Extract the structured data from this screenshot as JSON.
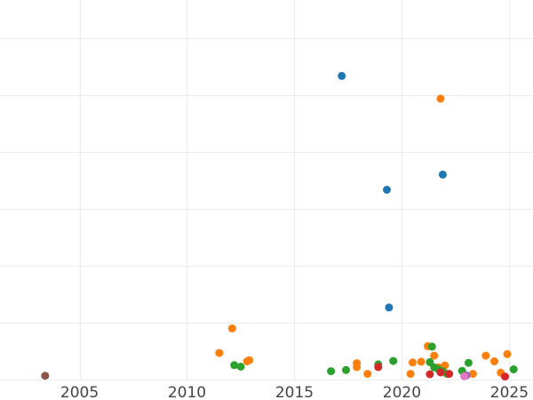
{
  "chart_data": {
    "type": "scatter",
    "title": "",
    "xlabel": "",
    "ylabel": "",
    "xlim": [
      2001.3,
      2026.1
    ],
    "ylim": [
      0,
      100
    ],
    "x_ticks": [
      2005,
      2010,
      2015,
      2020,
      2025
    ],
    "x_tick_labels": [
      "2005",
      "2010",
      "2015",
      "2020",
      "2025"
    ],
    "y_gridlines": [
      0,
      15,
      30,
      45,
      60,
      75,
      90
    ],
    "grid": true,
    "legend": "none",
    "series": [
      {
        "color": "#1f77b4",
        "points": [
          [
            2017.2,
            80
          ],
          [
            2019.3,
            50
          ],
          [
            2021.9,
            54
          ],
          [
            2019.4,
            19
          ]
        ]
      },
      {
        "color": "#ff7f0e",
        "points": [
          [
            2021.8,
            74
          ],
          [
            2012.1,
            13.5
          ],
          [
            2011.5,
            7
          ],
          [
            2012.8,
            4.8
          ],
          [
            2012.9,
            5.1
          ],
          [
            2017.9,
            3.3
          ],
          [
            2017.9,
            4.3
          ],
          [
            2018.4,
            1.5
          ],
          [
            2020.4,
            1.5
          ],
          [
            2020.5,
            4.5
          ],
          [
            2020.9,
            4.7
          ],
          [
            2021.2,
            8.8
          ],
          [
            2021.5,
            6.3
          ],
          [
            2021.7,
            3.2
          ],
          [
            2022.0,
            3.7
          ],
          [
            2023.3,
            1.5
          ],
          [
            2023.9,
            6.3
          ],
          [
            2024.3,
            4.8
          ],
          [
            2024.6,
            1.8
          ],
          [
            2024.9,
            6.7
          ]
        ]
      },
      {
        "color": "#2ca02c",
        "points": [
          [
            2012.2,
            3.8
          ],
          [
            2012.5,
            3.4
          ],
          [
            2016.7,
            2.2
          ],
          [
            2017.4,
            2.5
          ],
          [
            2018.9,
            4
          ],
          [
            2019.6,
            4.9
          ],
          [
            2021.3,
            4.6
          ],
          [
            2021.4,
            8.7
          ],
          [
            2021.5,
            3.2
          ],
          [
            2021.7,
            2.7
          ],
          [
            2021.9,
            2.2
          ],
          [
            2022.1,
            1.5
          ],
          [
            2022.8,
            2.3
          ],
          [
            2023.1,
            4.4
          ],
          [
            2025.2,
            2.7
          ]
        ]
      },
      {
        "color": "#d62728",
        "points": [
          [
            2018.9,
            3.3
          ],
          [
            2021.3,
            1.4
          ],
          [
            2021.8,
            1.9
          ],
          [
            2022.2,
            1.5
          ],
          [
            2024.8,
            0.8
          ]
        ]
      },
      {
        "color": "#9467bd",
        "points": [
          [
            2023.0,
            1.1
          ]
        ]
      },
      {
        "color": "#8c564b",
        "points": [
          [
            2003.4,
            1
          ]
        ]
      },
      {
        "color": "#e377c2",
        "points": [
          [
            2022.9,
            0.9
          ]
        ]
      }
    ]
  }
}
